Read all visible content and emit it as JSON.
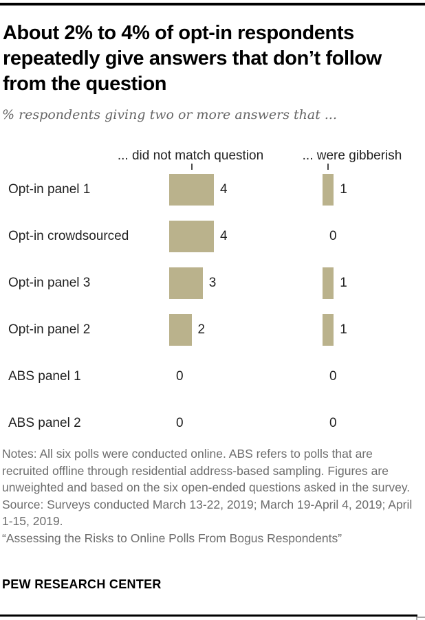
{
  "header": {
    "title": "About 2% to 4% of opt-in respondents repeatedly give answers that don’t follow from the question",
    "subtitle": "% respondents giving two or more answers that ..."
  },
  "chart_data": {
    "type": "bar",
    "orientation": "horizontal",
    "categories": [
      "Opt-in panel 1",
      "Opt-in crowdsourced",
      "Opt-in panel 3",
      "Opt-in panel 2",
      "ABS panel 1",
      "ABS panel 2"
    ],
    "series": [
      {
        "name": "... did not match question",
        "values": [
          4,
          4,
          3,
          2,
          0,
          0
        ]
      },
      {
        "name": "... were gibberish",
        "values": [
          1,
          0,
          1,
          1,
          0,
          0
        ]
      }
    ],
    "xlim": [
      0,
      4
    ],
    "value_labels": true,
    "grid": false,
    "bar_color": "#bab28c",
    "tick_color": "#4a4a4a"
  },
  "footnotes": {
    "notes": "Notes: All six polls were conducted online. ABS refers to polls that are recruited offline through residential address-based sampling. Figures are unweighted and based on the six open-ended questions asked in the survey.",
    "source": "Source: Surveys conducted March 13-22, 2019; March 19-April 4, 2019; April 1-15, 2019.",
    "citation": "“Assessing the Risks to Online Polls From Bogus Respondents”"
  },
  "branding": "PEW RESEARCH CENTER"
}
